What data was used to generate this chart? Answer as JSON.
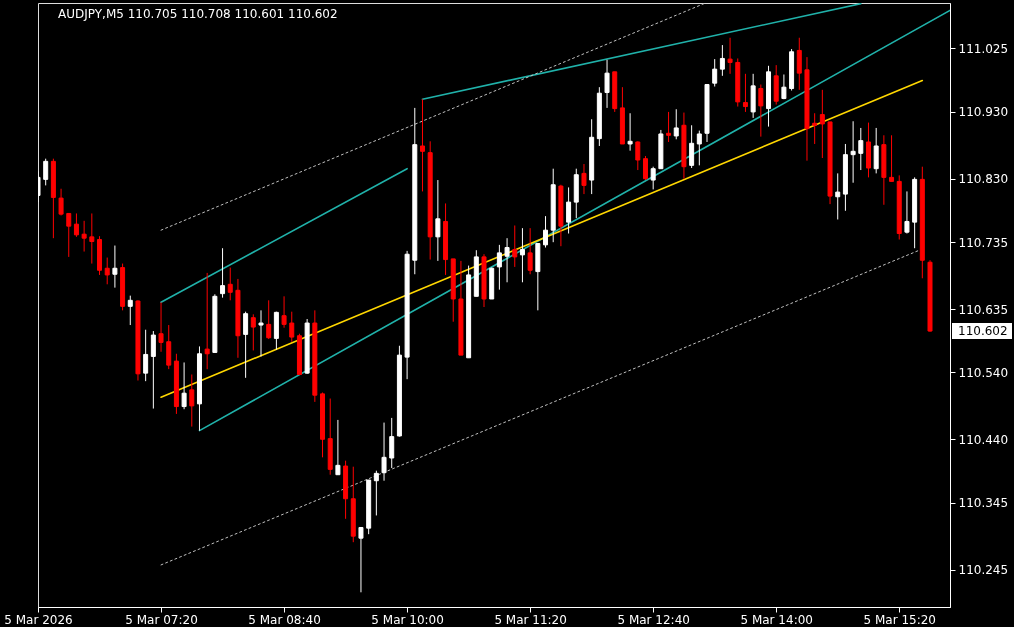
{
  "chart_data": {
    "type": "candlestick",
    "title": "AUDJPY,M5  110.705 110.708 110.601 110.602",
    "x": [
      "2026-03-05T06:00",
      "2026-03-05T06:05",
      "2026-03-05T06:10",
      "2026-03-05T06:15",
      "2026-03-05T06:20",
      "2026-03-05T06:25",
      "2026-03-05T06:30",
      "2026-03-05T06:35",
      "2026-03-05T06:40",
      "2026-03-05T06:45",
      "2026-03-05T06:50",
      "2026-03-05T06:55",
      "2026-03-05T07:00",
      "2026-03-05T07:05",
      "2026-03-05T07:10",
      "2026-03-05T07:15",
      "2026-03-05T07:20",
      "2026-03-05T07:25",
      "2026-03-05T07:30",
      "2026-03-05T07:35",
      "2026-03-05T07:40",
      "2026-03-05T07:45",
      "2026-03-05T07:50",
      "2026-03-05T07:55",
      "2026-03-05T08:00",
      "2026-03-05T08:05",
      "2026-03-05T08:10",
      "2026-03-05T08:15",
      "2026-03-05T08:20",
      "2026-03-05T08:25",
      "2026-03-05T08:30",
      "2026-03-05T08:35",
      "2026-03-05T08:40",
      "2026-03-05T08:45",
      "2026-03-05T08:50",
      "2026-03-05T08:55",
      "2026-03-05T09:00",
      "2026-03-05T09:05",
      "2026-03-05T09:10",
      "2026-03-05T09:15",
      "2026-03-05T09:20",
      "2026-03-05T09:25",
      "2026-03-05T09:30",
      "2026-03-05T09:35",
      "2026-03-05T09:40",
      "2026-03-05T09:45",
      "2026-03-05T09:50",
      "2026-03-05T09:55",
      "2026-03-05T10:00",
      "2026-03-05T10:05",
      "2026-03-05T10:10",
      "2026-03-05T10:15",
      "2026-03-05T10:20",
      "2026-03-05T10:25",
      "2026-03-05T10:30",
      "2026-03-05T10:35",
      "2026-03-05T10:40",
      "2026-03-05T10:45",
      "2026-03-05T10:50",
      "2026-03-05T10:55",
      "2026-03-05T11:00",
      "2026-03-05T11:05",
      "2026-03-05T11:10",
      "2026-03-05T11:15",
      "2026-03-05T11:20",
      "2026-03-05T11:25",
      "2026-03-05T11:30",
      "2026-03-05T11:35",
      "2026-03-05T11:40",
      "2026-03-05T11:45",
      "2026-03-05T11:50",
      "2026-03-05T11:55",
      "2026-03-05T12:00",
      "2026-03-05T12:05",
      "2026-03-05T12:10",
      "2026-03-05T12:15",
      "2026-03-05T12:20",
      "2026-03-05T12:25",
      "2026-03-05T12:30",
      "2026-03-05T12:35",
      "2026-03-05T12:40",
      "2026-03-05T12:45",
      "2026-03-05T12:50",
      "2026-03-05T12:55",
      "2026-03-05T13:00",
      "2026-03-05T13:05",
      "2026-03-05T13:10",
      "2026-03-05T13:15",
      "2026-03-05T13:20",
      "2026-03-05T13:25",
      "2026-03-05T13:30",
      "2026-03-05T13:35",
      "2026-03-05T13:40",
      "2026-03-05T13:45",
      "2026-03-05T13:50",
      "2026-03-05T13:55",
      "2026-03-05T14:00",
      "2026-03-05T14:05",
      "2026-03-05T14:10",
      "2026-03-05T14:15",
      "2026-03-05T14:20",
      "2026-03-05T14:25",
      "2026-03-05T14:30",
      "2026-03-05T14:35",
      "2026-03-05T14:40",
      "2026-03-05T14:45",
      "2026-03-05T14:50",
      "2026-03-05T14:55",
      "2026-03-05T15:00",
      "2026-03-05T15:05",
      "2026-03-05T15:10",
      "2026-03-05T15:15",
      "2026-03-05T15:20",
      "2026-03-05T15:25",
      "2026-03-05T15:30",
      "2026-03-05T15:35",
      "2026-03-05T15:40"
    ],
    "ohlc": [
      [
        110.805,
        110.841,
        110.795,
        110.832
      ],
      [
        110.829,
        110.86,
        110.82,
        110.856
      ],
      [
        110.856,
        110.86,
        110.741,
        110.802
      ],
      [
        110.801,
        110.815,
        110.775,
        110.777
      ],
      [
        110.778,
        110.778,
        110.713,
        110.759
      ],
      [
        110.762,
        110.778,
        110.743,
        110.746
      ],
      [
        110.747,
        110.767,
        110.721,
        110.741
      ],
      [
        110.743,
        110.778,
        110.703,
        110.736
      ],
      [
        110.739,
        110.744,
        110.686,
        110.693
      ],
      [
        110.696,
        110.712,
        110.672,
        110.686
      ],
      [
        110.687,
        110.73,
        110.667,
        110.696
      ],
      [
        110.697,
        110.703,
        110.633,
        110.639
      ],
      [
        110.639,
        110.655,
        110.611,
        110.648
      ],
      [
        110.647,
        110.648,
        110.528,
        110.538
      ],
      [
        110.539,
        110.604,
        110.527,
        110.567
      ],
      [
        110.564,
        110.602,
        110.486,
        110.596
      ],
      [
        110.598,
        110.645,
        110.571,
        110.585
      ],
      [
        110.586,
        110.611,
        110.545,
        110.551
      ],
      [
        110.557,
        110.568,
        110.478,
        110.489
      ],
      [
        110.489,
        110.555,
        110.485,
        110.509
      ],
      [
        110.514,
        110.537,
        110.459,
        110.49
      ],
      [
        110.493,
        110.579,
        110.453,
        110.568
      ],
      [
        110.575,
        110.689,
        110.545,
        110.568
      ],
      [
        110.57,
        110.657,
        110.57,
        110.654
      ],
      [
        110.658,
        110.726,
        110.652,
        110.67
      ],
      [
        110.672,
        110.697,
        110.648,
        110.66
      ],
      [
        110.663,
        110.68,
        110.562,
        110.595
      ],
      [
        110.597,
        110.631,
        110.532,
        110.628
      ],
      [
        110.622,
        110.627,
        110.573,
        110.608
      ],
      [
        110.611,
        110.633,
        110.564,
        110.614
      ],
      [
        110.612,
        110.648,
        110.59,
        110.592
      ],
      [
        110.591,
        110.631,
        110.574,
        110.63
      ],
      [
        110.625,
        110.654,
        110.607,
        110.612
      ],
      [
        110.614,
        110.631,
        110.586,
        110.593
      ],
      [
        110.595,
        110.598,
        110.537,
        110.537
      ],
      [
        110.539,
        110.62,
        110.538,
        110.614
      ],
      [
        110.614,
        110.633,
        110.496,
        110.506
      ],
      [
        110.508,
        110.51,
        110.413,
        110.44
      ],
      [
        110.441,
        110.501,
        110.387,
        110.395
      ],
      [
        110.387,
        110.469,
        110.387,
        110.401
      ],
      [
        110.4,
        110.408,
        110.321,
        110.351
      ],
      [
        110.351,
        110.399,
        110.286,
        110.295
      ],
      [
        110.292,
        110.308,
        110.211,
        110.308
      ],
      [
        110.307,
        110.379,
        110.298,
        110.379
      ],
      [
        110.378,
        110.393,
        110.326,
        110.389
      ],
      [
        110.39,
        110.465,
        110.378,
        110.413
      ],
      [
        110.412,
        110.472,
        110.397,
        110.444
      ],
      [
        110.445,
        110.58,
        110.444,
        110.566
      ],
      [
        110.563,
        110.722,
        110.53,
        110.717
      ],
      [
        110.708,
        110.936,
        110.687,
        110.881
      ],
      [
        110.879,
        110.949,
        110.811,
        110.871
      ],
      [
        110.869,
        110.886,
        110.709,
        110.743
      ],
      [
        110.743,
        110.828,
        110.707,
        110.77
      ],
      [
        110.766,
        110.793,
        110.686,
        110.709
      ],
      [
        110.71,
        110.71,
        110.616,
        110.65
      ],
      [
        110.65,
        110.707,
        110.566,
        110.566
      ],
      [
        110.562,
        110.7,
        110.562,
        110.686
      ],
      [
        110.654,
        110.723,
        110.654,
        110.713
      ],
      [
        110.713,
        110.717,
        110.638,
        110.65
      ],
      [
        110.65,
        110.697,
        110.65,
        110.696
      ],
      [
        110.698,
        110.731,
        110.664,
        110.719
      ],
      [
        110.714,
        110.741,
        110.675,
        110.727
      ],
      [
        110.724,
        110.76,
        110.698,
        110.713
      ],
      [
        110.716,
        110.756,
        110.675,
        110.724
      ],
      [
        110.719,
        110.756,
        110.687,
        110.693
      ],
      [
        110.691,
        110.733,
        110.633,
        110.733
      ],
      [
        110.731,
        110.774,
        110.727,
        110.753
      ],
      [
        110.753,
        110.845,
        110.735,
        110.821
      ],
      [
        110.819,
        110.821,
        110.729,
        110.759
      ],
      [
        110.765,
        110.817,
        110.748,
        110.795
      ],
      [
        110.795,
        110.845,
        110.771,
        110.836
      ],
      [
        110.838,
        110.852,
        110.807,
        110.82
      ],
      [
        110.828,
        110.919,
        110.807,
        110.892
      ],
      [
        110.89,
        110.967,
        110.879,
        110.958
      ],
      [
        110.959,
        111.008,
        110.936,
        110.988
      ],
      [
        110.99,
        110.99,
        110.93,
        110.935
      ],
      [
        110.936,
        110.967,
        110.882,
        110.882
      ],
      [
        110.882,
        110.928,
        110.872,
        110.886
      ],
      [
        110.885,
        110.886,
        110.843,
        110.858
      ],
      [
        110.86,
        110.864,
        110.828,
        110.83
      ],
      [
        110.828,
        110.848,
        110.814,
        110.845
      ],
      [
        110.845,
        110.903,
        110.845,
        110.897
      ],
      [
        110.898,
        110.93,
        110.885,
        110.895
      ],
      [
        110.894,
        110.934,
        110.889,
        110.906
      ],
      [
        110.91,
        110.929,
        110.83,
        110.848
      ],
      [
        110.85,
        110.91,
        110.846,
        110.883
      ],
      [
        110.882,
        110.902,
        110.85,
        110.897
      ],
      [
        110.898,
        110.971,
        110.885,
        110.971
      ],
      [
        110.973,
        111.009,
        110.968,
        110.994
      ],
      [
        110.994,
        111.03,
        110.984,
        111.01
      ],
      [
        111.009,
        111.041,
        110.987,
        111.004
      ],
      [
        111.004,
        111.01,
        110.938,
        110.945
      ],
      [
        110.944,
        110.987,
        110.93,
        110.938
      ],
      [
        110.93,
        110.987,
        110.921,
        110.969
      ],
      [
        110.965,
        110.971,
        110.893,
        110.939
      ],
      [
        110.935,
        110.999,
        110.908,
        110.99
      ],
      [
        110.984,
        111.0,
        110.941,
        110.946
      ],
      [
        110.95,
        110.986,
        110.949,
        110.967
      ],
      [
        110.965,
        111.024,
        110.962,
        111.02
      ],
      [
        111.022,
        111.041,
        110.963,
        110.988
      ],
      [
        110.993,
        111.012,
        110.857,
        110.905
      ],
      [
        110.913,
        110.928,
        110.882,
        110.91
      ],
      [
        110.926,
        110.963,
        110.861,
        110.912
      ],
      [
        110.915,
        110.915,
        110.792,
        110.804
      ],
      [
        110.803,
        110.838,
        110.769,
        110.81
      ],
      [
        110.807,
        110.882,
        110.782,
        110.866
      ],
      [
        110.866,
        110.916,
        110.824,
        110.871
      ],
      [
        110.868,
        110.906,
        110.843,
        110.887
      ],
      [
        110.885,
        110.914,
        110.832,
        110.846
      ],
      [
        110.845,
        110.906,
        110.838,
        110.879
      ],
      [
        110.881,
        110.895,
        110.791,
        110.832
      ],
      [
        110.832,
        110.895,
        110.826,
        110.826
      ],
      [
        110.826,
        110.835,
        110.739,
        110.748
      ],
      [
        110.75,
        110.811,
        110.748,
        110.766
      ],
      [
        110.765,
        110.832,
        110.726,
        110.829
      ],
      [
        110.829,
        110.848,
        110.681,
        110.708
      ],
      [
        110.705,
        110.708,
        110.601,
        110.602
      ]
    ],
    "colors": [
      "#ffffff",
      "#ffffff",
      "#ff0000",
      "#ff0000",
      "#ff0000",
      "#ff0000",
      "#ff0000",
      "#ff0000",
      "#ff0000",
      "#ff0000",
      "#ffffff",
      "#ff0000",
      "#ffffff",
      "#ff0000",
      "#ffffff",
      "#ffffff",
      "#ff0000",
      "#ff0000",
      "#ff0000",
      "#ffffff",
      "#ff0000",
      "#ffffff",
      "#ff0000",
      "#ffffff",
      "#ffffff",
      "#ff0000",
      "#ff0000",
      "#ffffff",
      "#ff0000",
      "#ffffff",
      "#ff0000",
      "#ffffff",
      "#ff0000",
      "#ff0000",
      "#ff0000",
      "#ffffff",
      "#ff0000",
      "#ff0000",
      "#ff0000",
      "#ffffff",
      "#ff0000",
      "#ff0000",
      "#ffffff",
      "#ffffff",
      "#ffffff",
      "#ffffff",
      "#ffffff",
      "#ffffff",
      "#ffffff",
      "#ffffff",
      "#ff0000",
      "#ff0000",
      "#ffffff",
      "#ff0000",
      "#ff0000",
      "#ff0000",
      "#ffffff",
      "#ffffff",
      "#ff0000",
      "#ffffff",
      "#ffffff",
      "#ffffff",
      "#ff0000",
      "#ffffff",
      "#ff0000",
      "#ffffff",
      "#ffffff",
      "#ffffff",
      "#ff0000",
      "#ffffff",
      "#ffffff",
      "#ff0000",
      "#ffffff",
      "#ffffff",
      "#ffffff",
      "#ff0000",
      "#ff0000",
      "#ffffff",
      "#ff0000",
      "#ff0000",
      "#ffffff",
      "#ffffff",
      "#ff0000",
      "#ffffff",
      "#ff0000",
      "#ffffff",
      "#ffffff",
      "#ffffff",
      "#ffffff",
      "#ffffff",
      "#ff0000",
      "#ff0000",
      "#ff0000",
      "#ffffff",
      "#ff0000",
      "#ffffff",
      "#ff0000",
      "#ffffff",
      "#ffffff",
      "#ff0000",
      "#ff0000",
      "#ff0000",
      "#ff0000",
      "#ff0000",
      "#ffffff",
      "#ffffff",
      "#ffffff",
      "#ffffff",
      "#ff0000",
      "#ffffff",
      "#ff0000",
      "#ff0000",
      "#ff0000",
      "#ffffff",
      "#ffffff",
      "#ff0000",
      "#ff0000"
    ],
    "series": [
      {
        "type": "line",
        "x": [
          "2026-03-05T07:20",
          "2026-03-05T10:00"
        ],
        "values": [
          110.645,
          110.845
        ],
        "color": "#20b2aa"
      },
      {
        "type": "line",
        "x": [
          "2026-03-05T07:45",
          "2026-03-05T15:53"
        ],
        "values": [
          110.453,
          111.082
        ],
        "color": "#20b2aa"
      },
      {
        "type": "line",
        "x": [
          "2026-03-05T10:10",
          "2026-03-05T14:55"
        ],
        "values": [
          110.949,
          111.092
        ],
        "color": "#20b2aa"
      },
      {
        "type": "line",
        "x": [
          "2026-03-05T07:20",
          "2026-03-05T15:35"
        ],
        "values": [
          110.503,
          110.977
        ],
        "color": "#ffd700"
      },
      {
        "type": "line",
        "x": [
          "2026-03-05T07:20",
          "2026-03-05T13:13"
        ],
        "values": [
          110.753,
          111.092
        ],
        "color": "#c0c0c0",
        "line_style": "dotted"
      },
      {
        "type": "line",
        "x": [
          "2026-03-05T07:20",
          "2026-03-05T15:32"
        ],
        "values": [
          110.252,
          110.722
        ],
        "color": "#c0c0c0",
        "line_style": "dotted"
      }
    ],
    "xlim": [
      "2026-03-05T06:00",
      "2026-03-05T15:53"
    ],
    "ylim": [
      110.189,
      111.093
    ],
    "xticks": [
      {
        "value": "2026-03-05T06:00",
        "label": "5 Mar 2026"
      },
      {
        "value": "2026-03-05T07:20",
        "label": "5 Mar 07:20"
      },
      {
        "value": "2026-03-05T08:40",
        "label": "5 Mar 08:40"
      },
      {
        "value": "2026-03-05T10:00",
        "label": "5 Mar 10:00"
      },
      {
        "value": "2026-03-05T11:20",
        "label": "5 Mar 11:20"
      },
      {
        "value": "2026-03-05T12:40",
        "label": "5 Mar 12:40"
      },
      {
        "value": "2026-03-05T14:00",
        "label": "5 Mar 14:00"
      },
      {
        "value": "2026-03-05T15:20",
        "label": "5 Mar 15:20"
      }
    ],
    "yticks": [
      110.245,
      110.345,
      {
        "value": 110.44,
        "label": "110.440"
      },
      {
        "value": 110.54,
        "label": "110.540"
      },
      110.635,
      110.735,
      {
        "value": 110.83,
        "label": "110.830"
      },
      {
        "value": 110.93,
        "label": "110.930"
      },
      111.025
    ],
    "annotations": [
      "110.602"
    ]
  }
}
